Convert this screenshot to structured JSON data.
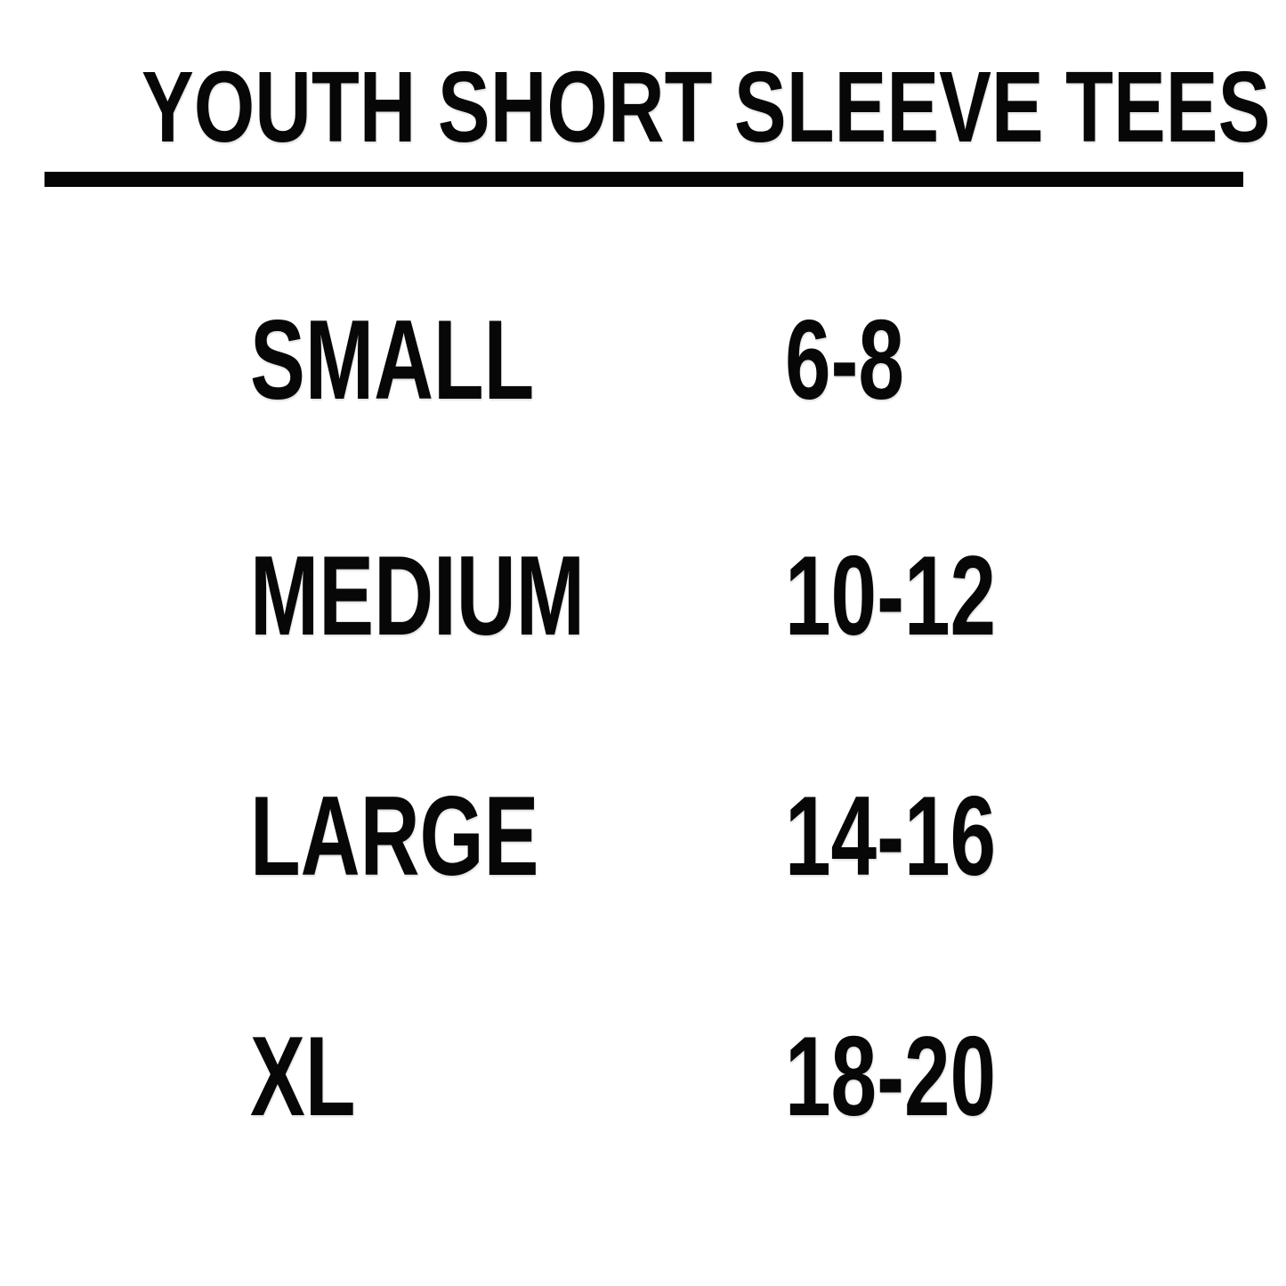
{
  "header": {
    "title": "YOUTH SHORT SLEEVE TEES"
  },
  "size_chart": {
    "rows": [
      {
        "size": "SMALL",
        "range": "6-8"
      },
      {
        "size": "MEDIUM",
        "range": "10-12"
      },
      {
        "size": "LARGE",
        "range": "14-16"
      },
      {
        "size": "XL",
        "range": "18-20"
      }
    ]
  },
  "colors": {
    "background": "#ffffff",
    "text": "#070707",
    "divider": "#050505"
  }
}
